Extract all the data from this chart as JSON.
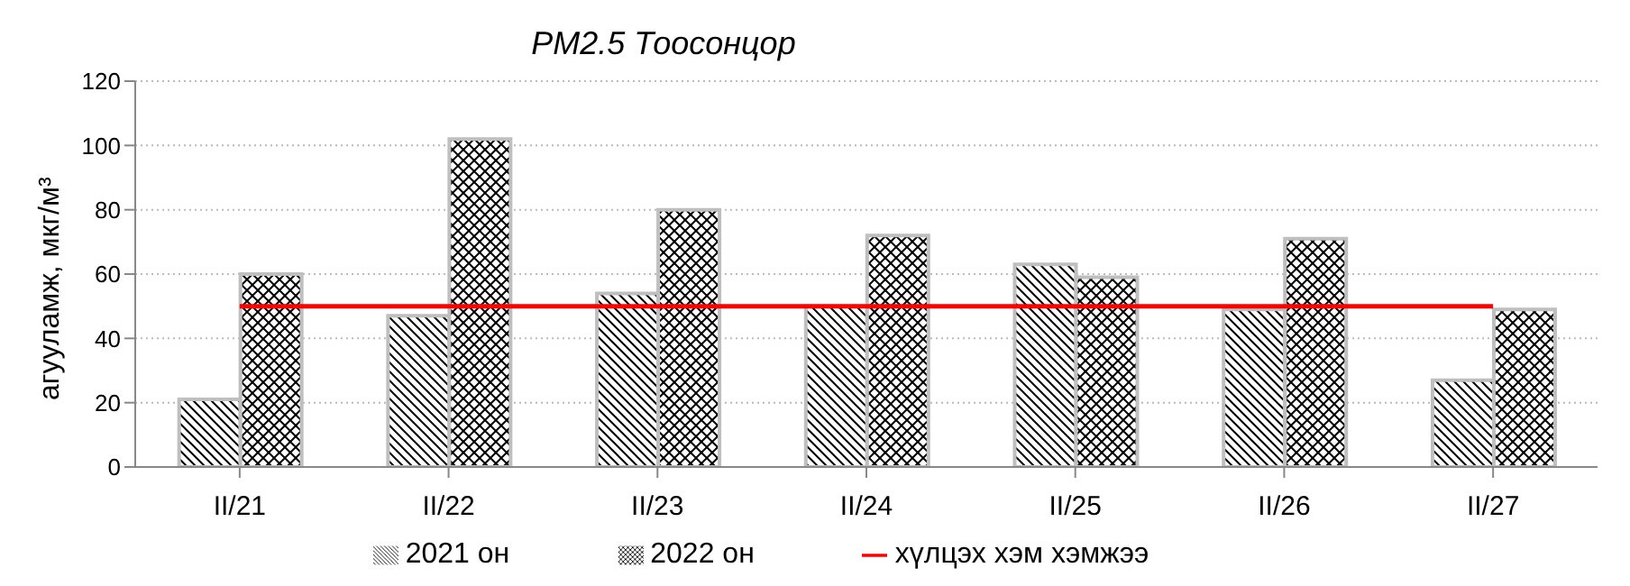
{
  "chart_data": {
    "type": "bar",
    "title": "PM2.5 Тоосонцор",
    "ylabel": "агууламж, мкг/м³",
    "categories": [
      "II/21",
      "II/22",
      "II/23",
      "II/24",
      "II/25",
      "II/26",
      "II/27"
    ],
    "series": [
      {
        "name": "2021 он",
        "color": "#bfbfbf",
        "values": [
          21,
          47,
          54,
          50,
          63,
          49,
          27
        ]
      },
      {
        "name": "2022 он",
        "color": "#bfbfbf",
        "values": [
          60,
          102,
          80,
          72,
          59,
          71,
          49
        ]
      },
      {
        "name": "хүлцэх хэм хэмжээ",
        "type": "line",
        "color": "#ff0000",
        "values": [
          50,
          50,
          50,
          50,
          50,
          50,
          50
        ]
      }
    ],
    "ylim": [
      0,
      120
    ],
    "yticks": [
      0,
      20,
      40,
      60,
      80,
      100,
      120
    ],
    "grid": "y",
    "legend": "bottom",
    "marker": "none"
  }
}
